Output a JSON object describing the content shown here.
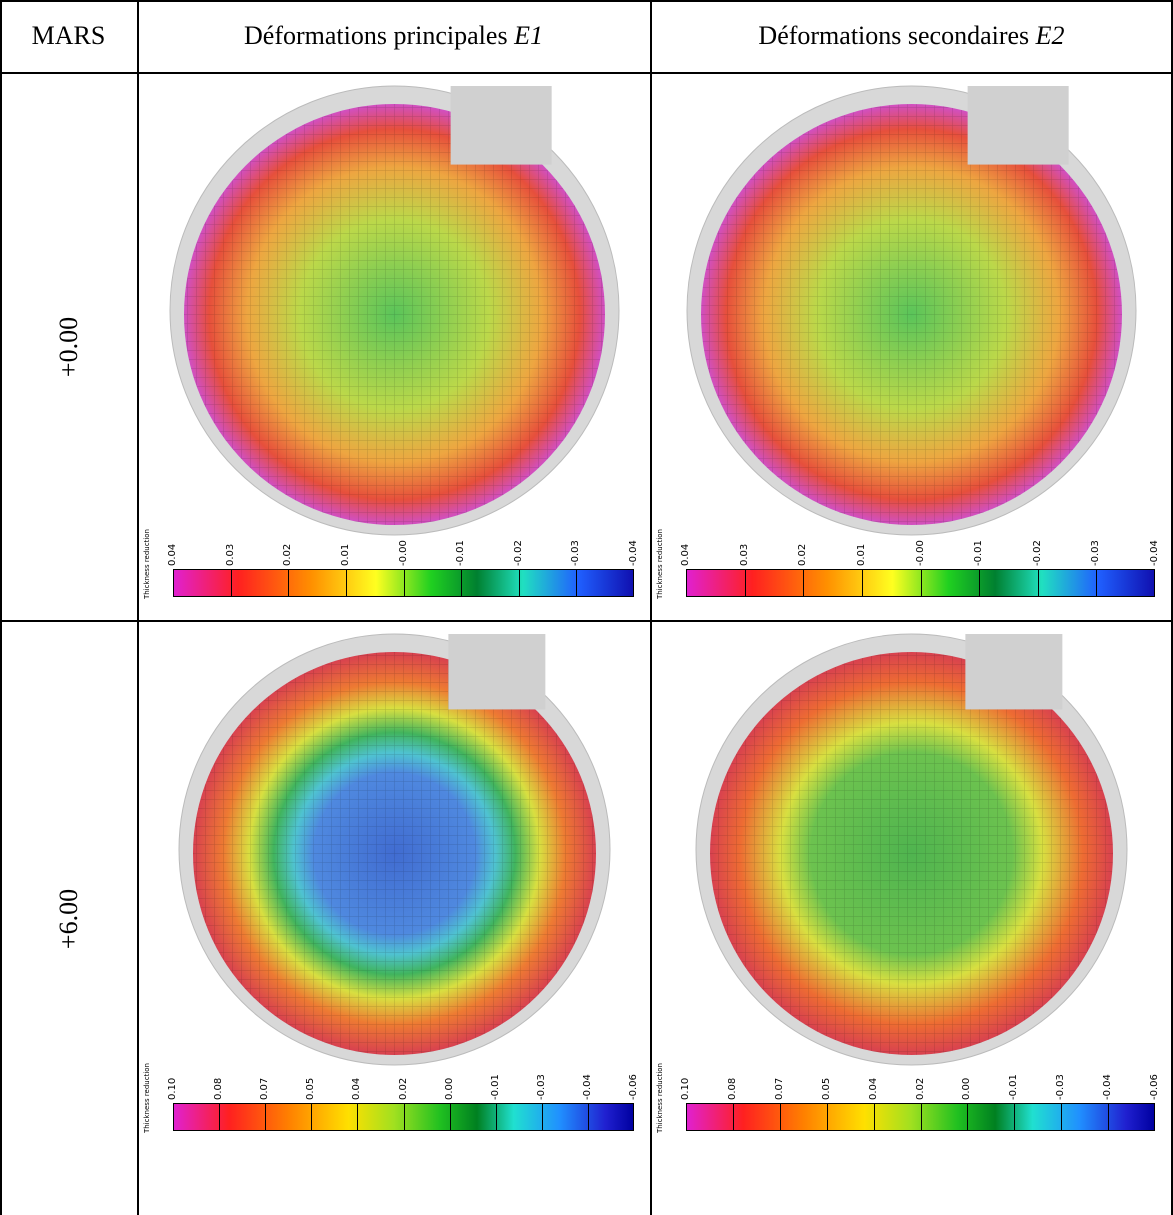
{
  "table": {
    "header": [
      {
        "text": "MARS"
      },
      {
        "text": "Déformations principales",
        "emphasis": "E1"
      },
      {
        "text": "Déformations secondaires",
        "emphasis": "E2"
      }
    ],
    "rows": [
      {
        "label": "+0.00",
        "cells": [
          {
            "colorbar": {
              "title": "Thickness reduction",
              "ticks": [
                "0.04",
                "0.03",
                "0.02",
                "0.01",
                "-0.00",
                "-0.01",
                "-0.02",
                "-0.03",
                "-0.04"
              ]
            }
          },
          {
            "colorbar": {
              "title": "Thickness reduction",
              "ticks": [
                "0.04",
                "0.03",
                "0.02",
                "0.01",
                "-0.00",
                "-0.01",
                "-0.02",
                "-0.03",
                "-0.04"
              ]
            }
          }
        ]
      },
      {
        "label": "+6.00",
        "cells": [
          {
            "colorbar": {
              "title": "Thickness reduction",
              "ticks": [
                "0.10",
                "0.08",
                "0.07",
                "0.05",
                "0.04",
                "0.02",
                "0.00",
                "-0.01",
                "-0.03",
                "-0.04",
                "-0.06"
              ]
            }
          },
          {
            "colorbar": {
              "title": "Thickness reduction",
              "ticks": [
                "0.10",
                "0.08",
                "0.07",
                "0.05",
                "0.04",
                "0.02",
                "0.00",
                "-0.01",
                "-0.03",
                "-0.04",
                "-0.06"
              ]
            }
          }
        ]
      }
    ]
  }
}
